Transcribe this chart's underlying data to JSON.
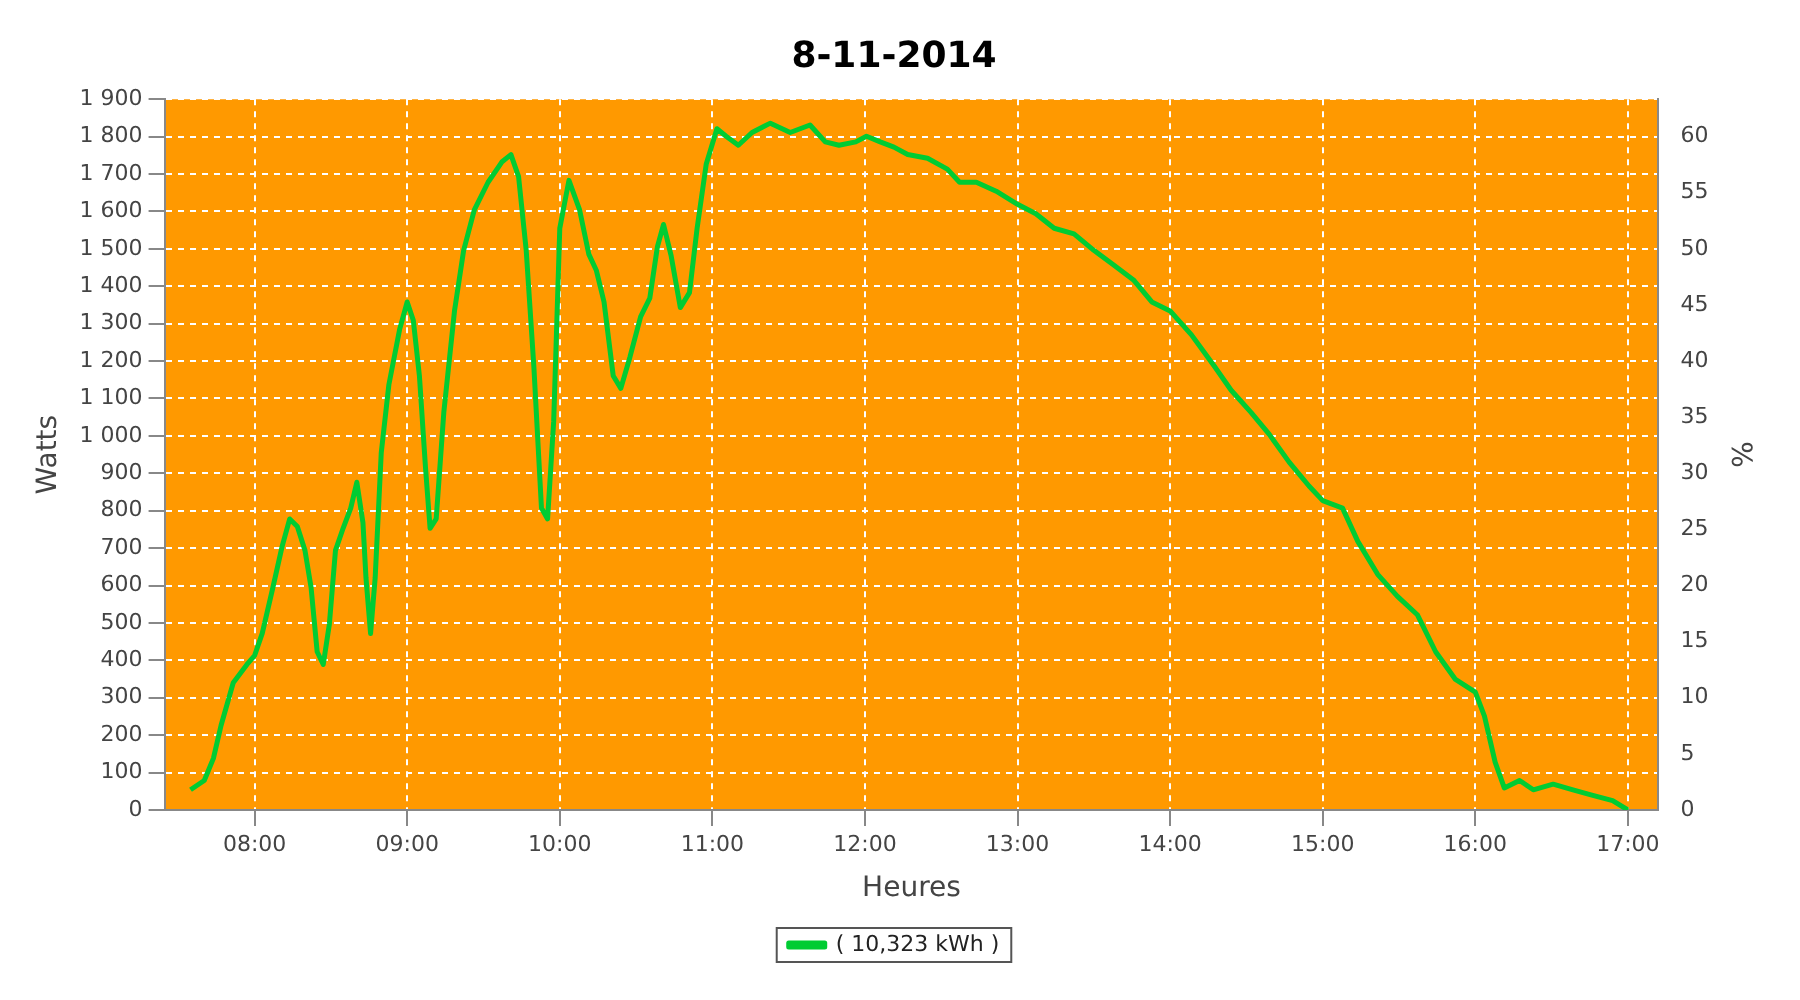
{
  "chart_data": {
    "type": "line",
    "title": "8-11-2014",
    "xlabel": "Heures",
    "ylabel": "Watts",
    "y2label": "%",
    "x": [
      7.58,
      7.67,
      7.73,
      7.78,
      7.86,
      7.95,
      8.0,
      8.05,
      8.12,
      8.18,
      8.23,
      8.28,
      8.33,
      8.37,
      8.41,
      8.45,
      8.49,
      8.53,
      8.58,
      8.63,
      8.67,
      8.71,
      8.73,
      8.76,
      8.79,
      8.83,
      8.88,
      8.95,
      9.0,
      9.04,
      9.08,
      9.12,
      9.15,
      9.19,
      9.24,
      9.31,
      9.37,
      9.44,
      9.53,
      9.62,
      9.68,
      9.73,
      9.78,
      9.83,
      9.88,
      9.92,
      9.96,
      10.0,
      10.06,
      10.13,
      10.19,
      10.24,
      10.29,
      10.35,
      10.4,
      10.46,
      10.53,
      10.59,
      10.64,
      10.68,
      10.73,
      10.79,
      10.85,
      10.9,
      10.96,
      11.03,
      11.09,
      11.17,
      11.26,
      11.38,
      11.51,
      11.64,
      11.74,
      11.83,
      11.94,
      12.01,
      12.1,
      12.19,
      12.28,
      12.41,
      12.54,
      12.62,
      12.73,
      12.86,
      13.0,
      13.12,
      13.24,
      13.37,
      13.5,
      13.63,
      13.76,
      13.88,
      14.0,
      14.14,
      14.29,
      14.4,
      14.53,
      14.65,
      14.78,
      14.91,
      15.0,
      15.13,
      15.23,
      15.36,
      15.49,
      15.62,
      15.74,
      15.87,
      16.0,
      16.06,
      16.13,
      16.19,
      16.29,
      16.38,
      16.51,
      16.64,
      16.77,
      16.9,
      17.0
    ],
    "series": [
      {
        "name": "( 10,323 kWh )",
        "color": "#00cc33",
        "values": [
          54,
          79,
          138,
          226,
          340,
          389,
          413,
          472,
          595,
          704,
          778,
          758,
          694,
          595,
          423,
          389,
          497,
          694,
          753,
          807,
          876,
          768,
          620,
          472,
          620,
          955,
          1137,
          1284,
          1358,
          1309,
          1161,
          915,
          753,
          778,
          1063,
          1334,
          1496,
          1604,
          1678,
          1732,
          1752,
          1693,
          1496,
          1186,
          807,
          778,
          1038,
          1555,
          1683,
          1604,
          1486,
          1442,
          1358,
          1161,
          1127,
          1211,
          1319,
          1368,
          1506,
          1565,
          1481,
          1343,
          1383,
          1555,
          1727,
          1821,
          1801,
          1777,
          1811,
          1836,
          1811,
          1831,
          1786,
          1777,
          1786,
          1801,
          1786,
          1772,
          1752,
          1742,
          1713,
          1678,
          1678,
          1654,
          1619,
          1594,
          1555,
          1540,
          1496,
          1457,
          1417,
          1358,
          1334,
          1270,
          1186,
          1122,
          1063,
          1004,
          930,
          866,
          827,
          807,
          718,
          630,
          571,
          522,
          423,
          349,
          315,
          251,
          128,
          59,
          79,
          54,
          69,
          54,
          39,
          25,
          0
        ]
      }
    ],
    "xlim": [
      7.41,
      17.2
    ],
    "xticks": [
      {
        "value": 8,
        "label": "08:00"
      },
      {
        "value": 9,
        "label": "09:00"
      },
      {
        "value": 10,
        "label": "10:00"
      },
      {
        "value": 11,
        "label": "11:00"
      },
      {
        "value": 12,
        "label": "12:00"
      },
      {
        "value": 13,
        "label": "13:00"
      },
      {
        "value": 14,
        "label": "14:00"
      },
      {
        "value": 15,
        "label": "15:00"
      },
      {
        "value": 16,
        "label": "16:00"
      },
      {
        "value": 17,
        "label": "17:00"
      }
    ],
    "ylim": [
      0,
      1900
    ],
    "yticks": [
      0,
      100,
      200,
      300,
      400,
      500,
      600,
      700,
      800,
      900,
      {
        "value": 1000,
        "label": "1 000"
      },
      {
        "value": 1100,
        "label": "1 100"
      },
      {
        "value": 1200,
        "label": "1 200"
      },
      {
        "value": 1300,
        "label": "1 300"
      },
      {
        "value": 1400,
        "label": "1 400"
      },
      {
        "value": 1500,
        "label": "1 500"
      },
      {
        "value": 1600,
        "label": "1 600"
      },
      {
        "value": 1700,
        "label": "1 700"
      },
      {
        "value": 1800,
        "label": "1 800"
      },
      {
        "value": 1900,
        "label": "1 900"
      }
    ],
    "y2lim": [
      0,
      63.33
    ],
    "y2ticks": [
      0,
      5,
      10,
      15,
      20,
      25,
      30,
      35,
      40,
      45,
      50,
      55,
      60
    ],
    "grid": true,
    "legend": "bottom",
    "marker": "none",
    "line_style": "solid"
  }
}
